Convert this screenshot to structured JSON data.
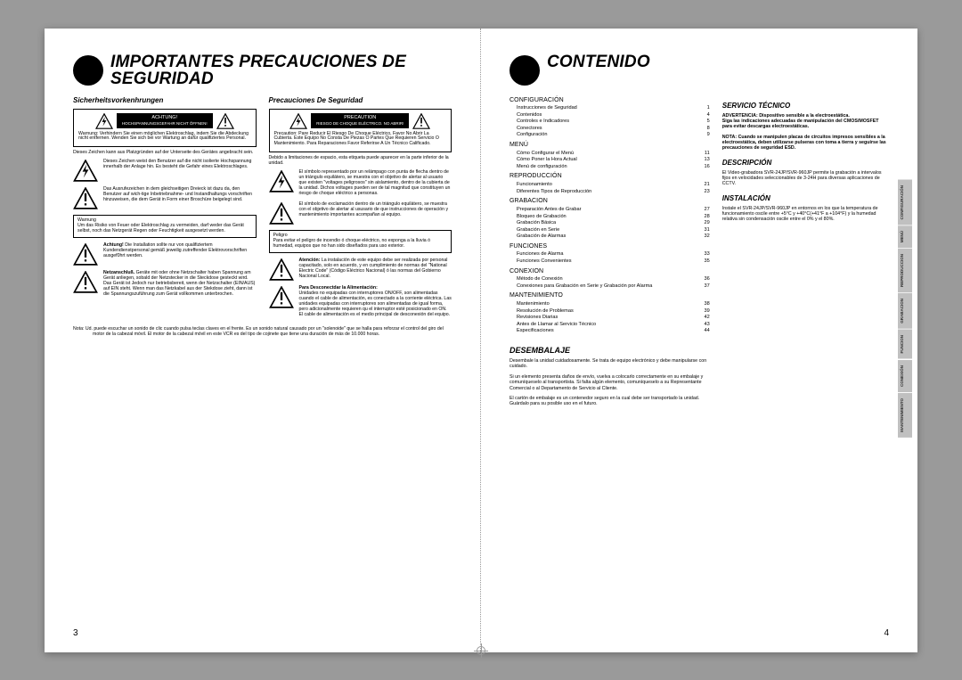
{
  "left": {
    "title": "IMPORTANTES PRECAUCIONES DE SEGURIDAD",
    "pagenum": "3",
    "colA": {
      "subhead": "Sicherheitsvorkenhrungen",
      "warn_label": "ACHTUNG!",
      "warn_label_sub": "HOCHSPANNUNGSGEFAHR NICHT ÖFFNEN!",
      "warn_body": "Warnung: Verhindern Sie einen möglichen Elektroschlag, indem Sie die Abdeckung nicht entfernen. Wenden Sie sich bei vor Wartung an dafür qualifiziertes Personal.",
      "after_box": "Dieses Zeichen kann aus Platzgründen auf der Unterseite des Gerätes angebracht sein.",
      "row1": "Dieses Zeichen weist den Benutzer auf die nicht isolierte Hochspannung innerhalb der Anlage hin. Es besteht die Gefahr eines Elektroschlages.",
      "row2": "Das Ausrufezeichen in dem gleichseitigen Dreieck ist dazu da, den Benutzer auf wich-tige Inbetriebnahme- und Instandhaltungs vorschriften hinzuweisen, die dem Gerät in Form einer Broschüre beigelegt sind.",
      "box1": "Warnung\nUm das Risiko von Feuer oder Elektroschlag zu vermeiden, darf weder das Gerät selbst, noch das Netzgerät Regen oder Feuchtigkeit ausgesetzt werden.",
      "row3_bold": "Achtung!",
      "row3": " Die Installation sollte nur von qualifiziertem Kundendienstpersonal gemäß jeweilig zutreffender Elektrovorschriften ausgef0hrt werden.",
      "row4_bold": "Netzanschluß.",
      "row4": " Geräte mit oder ohne Netzschalter haben Spannung am Gerät anliegen, sobald der Netzstecker in die Steckdose gesteckt wird. Das Gerät ist Jedoch nur betriebsbereit, wenn der Netzschalter (EIN/AUS) auf EIN steht. Wenn man das Netzkabel aus der Stekdose zieht, dann ist die Spannungszuführung zum Gerät vollkommen unterbrochen."
    },
    "colB": {
      "subhead": "Precauciones De Seguridad",
      "warn_label": "PRECAUTION",
      "warn_label_sub": "RIESGO DE CHOQUE ELÉCTRICO. NO ABRIR!",
      "warn_body": "Precaution: Pare Reducir El Riesgo De Choque Eléctrico, Favor No Abrir La Cubierta. Este Equipo No Consta De Piezas O Partes Que Requieren Servicio O Mantenimiento. Para Reparaciones Favor Referirse A Un Técnico Calificado.",
      "after_box": "Debido a limitaciones de espacio, esta etiqueta puede aparecer en la parte inferior de la unidad.",
      "row1": "El símbolo representado por un relámpago con punta de flecha dentro de un triángulo equilátero, se muestra con el objetivo de alertar al usuario que existen \"voltages peligrosos\" sin aislamiento, dentro de la cubierta de la unidad. Dichos voltages pueden ser de tal magnitud que constituyen un riesgo de choque eléctrico a personas.",
      "row2": "El símbolo de exclamación dentro de un triángulo equilátero, se muestra con el objetivo de alertar al ususario de que instrucciones de operación y mantenimiento importantes acompañan al equipo.",
      "box1": "Peligro\nPara evitar el peligro de incendio ó choque eléctrico, no exponga a la lluvia ó humedad, equipos que no han sido diseñados para uso exterior.",
      "row3_bold": "Atención:",
      "row3": " La instalación de este equipo debe ser realizada por personal capacitado, solo en acuerdo, y en cumplimiento de normas del \"National Electric Code\" (Código Eléctrico Nacional) ó las normas del Gobierno Nacional Local.",
      "row4_bold": "Para Desconectdar la Alimentación:",
      "row4": "\nUnidades no equipadas con interruptores ON/OFF, son alimentadas cuando el cable de alimentación, es conectado a la corriente eléctrica. Las unidades equipadas con interruptores son alimentadas de igual forma, pero adicionalmente requieren qu el interruptor esté posicionado en ON. El cable de alimentación es el medio principal de desconexión del equipo."
    },
    "nota_label": "Nota:",
    "nota": " Ud. puede escuchar un sonido de clic cuando pulsa teclas claves en el frente. Es un sonido natural causado por un \"solenoide\" que se halla para reforzar el control del giro del motor de la cabezal móvil. El motor de la cabezal móvil en este VCR es del tipo de cojinete que tiene una duración de más de 10.000 horas."
  },
  "right": {
    "title": "CONTENIDO",
    "pagenum": "4",
    "toc": [
      {
        "head": "CONFIGURACIÓN",
        "items": [
          {
            "lbl": "Instrucciones de Seguridad",
            "pg": "1"
          },
          {
            "lbl": "Contenidos",
            "pg": "4"
          },
          {
            "lbl": "Controles e Indicadores",
            "pg": "5"
          },
          {
            "lbl": "Conectores",
            "pg": "8"
          },
          {
            "lbl": "Configuración",
            "pg": "9"
          }
        ]
      },
      {
        "head": "MENÚ",
        "items": [
          {
            "lbl": "Cómo Configurar el Menú",
            "pg": "11"
          },
          {
            "lbl": "Cómo Poner la Hora Actual",
            "pg": "13"
          },
          {
            "lbl": "Menú de configuración",
            "pg": "16"
          }
        ]
      },
      {
        "head": "REPRODUCCIÓN",
        "items": [
          {
            "lbl": "Funcionamiento",
            "pg": "21"
          },
          {
            "lbl": "Diferentes Tipos de Reproducción",
            "pg": "23"
          }
        ]
      },
      {
        "head": "GRABACION",
        "items": [
          {
            "lbl": "Preparación Antes de Grabar",
            "pg": "27"
          },
          {
            "lbl": "Bloqueo de Grabación",
            "pg": "28"
          },
          {
            "lbl": "Grabación Básica",
            "pg": "29"
          },
          {
            "lbl": "Grabación en Serie",
            "pg": "31"
          },
          {
            "lbl": "Grabación de Alarmas",
            "pg": "32"
          }
        ]
      },
      {
        "head": "FUNCIONES",
        "items": [
          {
            "lbl": "Funciones de Alarma",
            "pg": "33"
          },
          {
            "lbl": "Funciones Convenientes",
            "pg": "35"
          }
        ]
      },
      {
        "head": "CONEXION",
        "items": [
          {
            "lbl": "Método de Conexión",
            "pg": "36"
          },
          {
            "lbl": "Conexiones para Grabación en Serie y Grabación por Alarma",
            "pg": "37"
          }
        ]
      },
      {
        "head": "MANTENIMIENTO",
        "items": [
          {
            "lbl": "Mantenimiento",
            "pg": "38"
          },
          {
            "lbl": "Resolución de Problemas",
            "pg": "39"
          },
          {
            "lbl": "Revisiones Diarias",
            "pg": "42"
          },
          {
            "lbl": "Antes de Llamar al Servicio Técnico",
            "pg": "43"
          },
          {
            "lbl": "Especificaciones",
            "pg": "44"
          }
        ]
      }
    ],
    "desem_head": "DESEMBALAJE",
    "desem_p1": "Desembale la unidad cuidadosamente. Se trata de equipo electrónico y debe manipularse con cuidado.",
    "desem_p2": "Si un elemento presenta daños de envío, vuelva a colocarlo correctamente en su embalaje y comuníqueselo al transportista. Si falta algún elemento, comuníqueselo a su Representante Comercial o al Departamento de Servicio al Cliente.",
    "desem_p3": "El cartón de embalaje es un contenedor seguro en la cual debe ser transportado la unidad. Guárdalo para su posible uso en el futuro.",
    "serv_head": "SERVICIO TÉCNICO",
    "serv_p1": "ADVERTENCIA: Dispositivo sensible a la electroestática.\nSiga las indicaciones adecuadas de manipulación del CMOS/MOSFET para evitar descargas electroestáticas.",
    "serv_p2": "NOTA: Cuando se manipulen placas de circuitos impresos sensibles a la electroestática, deben utilizarse pulseras con toma a tierra y seguirse las precauciones de seguridad ESD.",
    "desc_head": "DESCRIPCIÓN",
    "desc_p": "El Video-grabadora SVR-24JP/SVR-960JP permite la grabación a intervalos fijos en velocidades seleccionables de 3-24H para diversas aplicaciones de CCTV.",
    "inst_head": "INSTALACIÓN",
    "inst_p": "Instale el SVR-24JP/SVR-960JP en entornos en los que la temperatura de funcionamiento oscile entre +5°C y +40°C(+41°F a +104°F) y la humedad relativa sin condensación oscile entre el 0% y el 80%.",
    "tabs": [
      "CONFIGURACIÓN",
      "MENÚ",
      "REPRODUCCION",
      "GRABACION",
      "FUNCION",
      "CONEXIÓN",
      "MANTENIMIENTO"
    ]
  }
}
